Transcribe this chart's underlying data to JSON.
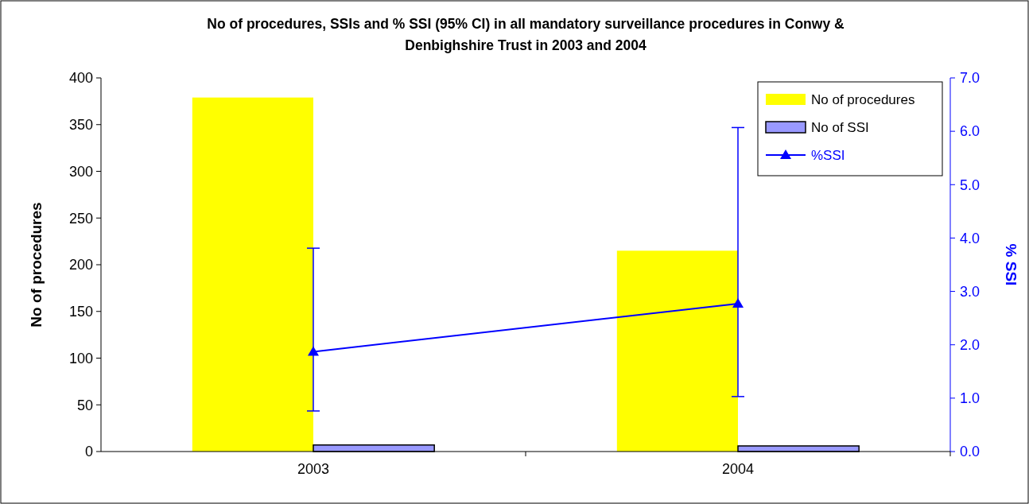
{
  "chart_data": {
    "type": "bar",
    "title": "No of procedures, SSIs and % SSI (95% CI) in all mandatory surveillance procedures in Conwy & Denbighshire Trust  in 2003 and 2004",
    "categories": [
      "2003",
      "2004"
    ],
    "series": [
      {
        "name": "No of procedures",
        "color": "#ffff00",
        "values": [
          379,
          215
        ]
      },
      {
        "name": "No of SSI",
        "color": "#9999ff",
        "values": [
          7,
          6
        ]
      },
      {
        "name": "%SSI",
        "type": "line",
        "axis": "y2",
        "color": "#0000ff",
        "values": [
          1.87,
          2.77
        ],
        "errors": [
          [
            0.76,
            3.81
          ],
          [
            1.03,
            6.07
          ]
        ],
        "marker": "triangle"
      }
    ],
    "ylabel": "No of procedures",
    "y2label": "% SSI",
    "ylim": [
      0,
      400
    ],
    "yticks": [
      0,
      50,
      100,
      150,
      200,
      250,
      300,
      350,
      400
    ],
    "y2lim": [
      0,
      7
    ],
    "y2ticks": [
      {
        "value": 0,
        "label": "0.0"
      },
      {
        "value": 1,
        "label": "1.0"
      },
      {
        "value": 2,
        "label": "2.0"
      },
      {
        "value": 3,
        "label": "3.0"
      },
      {
        "value": 4,
        "label": "4.0"
      },
      {
        "value": 5,
        "label": "5.0"
      },
      {
        "value": 6,
        "label": "6.0"
      },
      {
        "value": 7,
        "label": "7.0"
      }
    ],
    "legend": "top right",
    "grid": false
  }
}
